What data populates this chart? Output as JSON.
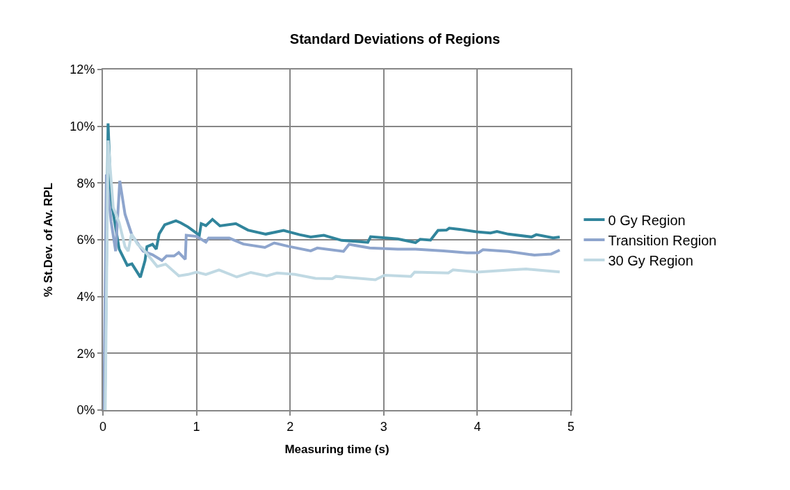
{
  "chart_data": {
    "type": "line",
    "title": "Standard Deviations of Regions",
    "xlabel": "Measuring time (s)",
    "ylabel": "% St.Dev. of Av. RPL",
    "xlim": [
      0,
      5
    ],
    "xticks": [
      0,
      1,
      2,
      3,
      4,
      5
    ],
    "ylim": [
      0,
      12
    ],
    "yticks": [
      {
        "value": 0,
        "label": "0%"
      },
      {
        "value": 2,
        "label": "2%"
      },
      {
        "value": 4,
        "label": "4%"
      },
      {
        "value": 6,
        "label": "6%"
      },
      {
        "value": 8,
        "label": "8%"
      },
      {
        "value": 10,
        "label": "10%"
      },
      {
        "value": 12,
        "label": "12%"
      }
    ],
    "grid": true,
    "legend": "right",
    "marker": "none",
    "line_style": "solid",
    "series": [
      {
        "name": "0 Gy Region",
        "color": "#31859c",
        "x": [
          0.02,
          0.055,
          0.087,
          0.174,
          0.26,
          0.31,
          0.4,
          0.45,
          0.47,
          0.53,
          0.57,
          0.6,
          0.66,
          0.78,
          0.83,
          0.91,
          1.03,
          1.05,
          1.1,
          1.17,
          1.25,
          1.42,
          1.55,
          1.74,
          1.93,
          2.1,
          2.22,
          2.36,
          2.55,
          2.83,
          2.86,
          3.04,
          3.15,
          3.34,
          3.39,
          3.5,
          3.58,
          3.67,
          3.7,
          3.81,
          3.99,
          4.14,
          4.21,
          4.33,
          4.58,
          4.63,
          4.81,
          4.88
        ],
        "values": [
          0,
          10.1,
          7.4,
          5.67,
          5.1,
          5.15,
          4.68,
          5.27,
          5.76,
          5.84,
          5.67,
          6.2,
          6.53,
          6.67,
          6.6,
          6.45,
          6.16,
          6.57,
          6.5,
          6.72,
          6.49,
          6.57,
          6.34,
          6.2,
          6.33,
          6.18,
          6.1,
          6.16,
          5.98,
          5.91,
          6.11,
          6.06,
          6.03,
          5.9,
          6.02,
          5.99,
          6.33,
          6.34,
          6.41,
          6.37,
          6.28,
          6.24,
          6.29,
          6.2,
          6.1,
          6.18,
          6.07,
          6.1
        ]
      },
      {
        "name": "Transition Region",
        "color": "#8ea5cd",
        "x": [
          0.01,
          0.037,
          0.087,
          0.136,
          0.18,
          0.236,
          0.31,
          0.43,
          0.53,
          0.63,
          0.68,
          0.76,
          0.81,
          0.88,
          0.89,
          1.0,
          1.1,
          1.13,
          1.35,
          1.5,
          1.73,
          1.83,
          1.98,
          2.22,
          2.29,
          2.57,
          2.63,
          2.85,
          3.15,
          3.34,
          3.64,
          3.89,
          4.01,
          4.06,
          4.33,
          4.61,
          4.79,
          4.88
        ],
        "values": [
          0,
          8.3,
          6.65,
          5.6,
          8.08,
          6.9,
          6.16,
          5.6,
          5.47,
          5.27,
          5.43,
          5.43,
          5.55,
          5.31,
          6.16,
          6.12,
          5.92,
          6.06,
          6.06,
          5.85,
          5.73,
          5.89,
          5.77,
          5.61,
          5.71,
          5.59,
          5.84,
          5.71,
          5.67,
          5.67,
          5.61,
          5.54,
          5.54,
          5.65,
          5.59,
          5.46,
          5.5,
          5.64
        ]
      },
      {
        "name": "30 Gy Region",
        "color": "#c0d9e3",
        "x": [
          0.025,
          0.055,
          0.11,
          0.174,
          0.236,
          0.27,
          0.305,
          0.37,
          0.43,
          0.58,
          0.67,
          0.81,
          0.91,
          1.0,
          1.1,
          1.24,
          1.43,
          1.58,
          1.75,
          1.86,
          2.05,
          2.27,
          2.45,
          2.49,
          2.91,
          3.01,
          3.29,
          3.33,
          3.69,
          3.74,
          4.0,
          4.36,
          4.52,
          4.88
        ],
        "values": [
          0,
          9.5,
          7.14,
          6.6,
          5.76,
          5.6,
          6.2,
          5.84,
          5.67,
          5.06,
          5.14,
          4.73,
          4.78,
          4.86,
          4.78,
          4.94,
          4.69,
          4.85,
          4.73,
          4.83,
          4.78,
          4.64,
          4.63,
          4.71,
          4.59,
          4.75,
          4.71,
          4.86,
          4.83,
          4.94,
          4.86,
          4.94,
          4.97,
          4.87
        ]
      }
    ]
  }
}
